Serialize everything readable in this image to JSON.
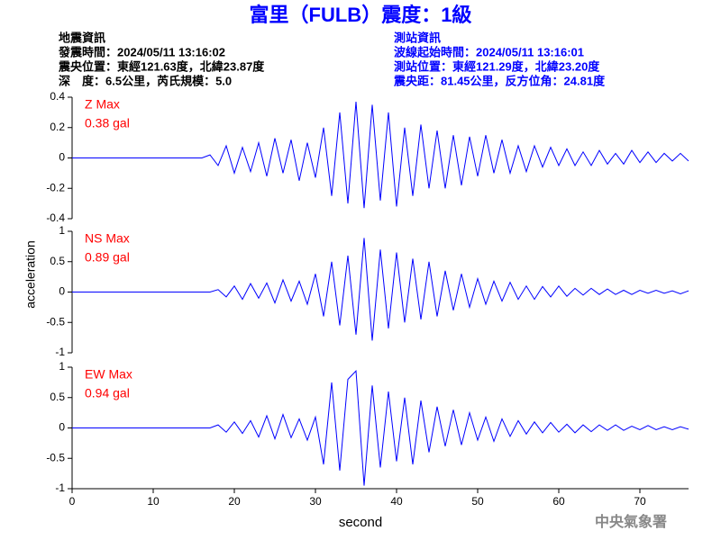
{
  "title": "富里（FULB）震度：1級",
  "earthquake_info": [
    "地震資訊",
    "發震時間：2024/05/11 13:16:02",
    "震央位置：東經121.63度，北緯23.87度",
    "深　度：6.5公里，芮氏規模：5.0"
  ],
  "station_info": [
    "測站資訊",
    "波線起始時間：2024/05/11 13:16:01",
    "測站位置：東經121.29度，北緯23.20度",
    "震央距：81.45公里，反方位角：24.81度"
  ],
  "y_label": "acceleration",
  "x_label": "second",
  "footer": "中央氣象署",
  "chart_data": [
    {
      "type": "line",
      "label": "Z Max",
      "max_label": "0.38 gal",
      "color": "#0000ff",
      "xlim": [
        0,
        76
      ],
      "ylim": [
        -0.4,
        0.4
      ],
      "yticks": [
        -0.4,
        -0.2,
        0,
        0.2,
        0.4
      ],
      "x": [
        0,
        1,
        2,
        3,
        4,
        5,
        6,
        7,
        8,
        9,
        10,
        11,
        12,
        13,
        14,
        15,
        16,
        17,
        18,
        19,
        20,
        21,
        22,
        23,
        24,
        25,
        26,
        27,
        28,
        29,
        30,
        31,
        32,
        33,
        34,
        35,
        36,
        37,
        38,
        39,
        40,
        41,
        42,
        43,
        44,
        45,
        46,
        47,
        48,
        49,
        50,
        51,
        52,
        53,
        54,
        55,
        56,
        57,
        58,
        59,
        60,
        61,
        62,
        63,
        64,
        65,
        66,
        67,
        68,
        69,
        70,
        71,
        72,
        73,
        74,
        75,
        76
      ],
      "values": [
        0,
        0,
        0,
        0,
        0,
        0,
        0,
        0,
        0,
        0,
        0,
        0,
        0,
        0,
        0,
        0,
        0,
        0.02,
        -0.05,
        0.08,
        -0.1,
        0.07,
        -0.09,
        0.1,
        -0.12,
        0.13,
        -0.1,
        0.12,
        -0.15,
        0.1,
        -0.13,
        0.2,
        -0.25,
        0.3,
        -0.3,
        0.37,
        -0.33,
        0.35,
        -0.28,
        0.3,
        -0.32,
        0.2,
        -0.25,
        0.22,
        -0.2,
        0.18,
        -0.2,
        0.15,
        -0.18,
        0.14,
        -0.12,
        0.15,
        -0.1,
        0.12,
        -0.1,
        0.08,
        -0.09,
        0.08,
        -0.06,
        0.07,
        -0.05,
        0.06,
        -0.05,
        0.04,
        -0.05,
        0.05,
        -0.04,
        0.03,
        -0.04,
        0.05,
        -0.03,
        0.04,
        -0.03,
        0.03,
        -0.02,
        0.03,
        -0.02
      ]
    },
    {
      "type": "line",
      "label": "NS Max",
      "max_label": "0.89 gal",
      "color": "#0000ff",
      "xlim": [
        0,
        76
      ],
      "ylim": [
        -1,
        1
      ],
      "yticks": [
        -1,
        -0.5,
        0,
        0.5,
        1
      ],
      "x": [
        0,
        1,
        2,
        3,
        4,
        5,
        6,
        7,
        8,
        9,
        10,
        11,
        12,
        13,
        14,
        15,
        16,
        17,
        18,
        19,
        20,
        21,
        22,
        23,
        24,
        25,
        26,
        27,
        28,
        29,
        30,
        31,
        32,
        33,
        34,
        35,
        36,
        37,
        38,
        39,
        40,
        41,
        42,
        43,
        44,
        45,
        46,
        47,
        48,
        49,
        50,
        51,
        52,
        53,
        54,
        55,
        56,
        57,
        58,
        59,
        60,
        61,
        62,
        63,
        64,
        65,
        66,
        67,
        68,
        69,
        70,
        71,
        72,
        73,
        74,
        75,
        76
      ],
      "values": [
        0,
        0,
        0,
        0,
        0,
        0,
        0,
        0,
        0,
        0,
        0,
        0,
        0,
        0,
        0,
        0,
        0,
        0,
        0.04,
        -0.08,
        0.1,
        -0.12,
        0.14,
        -0.1,
        0.15,
        -0.18,
        0.2,
        -0.15,
        0.18,
        -0.2,
        0.3,
        -0.4,
        0.5,
        -0.55,
        0.6,
        -0.7,
        0.89,
        -0.8,
        0.7,
        -0.6,
        0.65,
        -0.5,
        0.55,
        -0.45,
        0.5,
        -0.4,
        0.35,
        -0.3,
        0.3,
        -0.25,
        0.22,
        -0.2,
        0.18,
        -0.15,
        0.16,
        -0.12,
        0.1,
        -0.12,
        0.09,
        -0.08,
        0.1,
        -0.07,
        0.06,
        -0.05,
        0.06,
        -0.04,
        0.05,
        -0.04,
        0.03,
        -0.04,
        0.03,
        -0.02,
        0.03,
        -0.02,
        0.02,
        -0.03,
        0.02
      ]
    },
    {
      "type": "line",
      "label": "EW Max",
      "max_label": "0.94 gal",
      "color": "#0000ff",
      "xlim": [
        0,
        76
      ],
      "ylim": [
        -1,
        1
      ],
      "yticks": [
        -1,
        -0.5,
        0,
        0.5,
        1
      ],
      "xticks": [
        0,
        10,
        20,
        30,
        40,
        50,
        60,
        70
      ],
      "x": [
        0,
        1,
        2,
        3,
        4,
        5,
        6,
        7,
        8,
        9,
        10,
        11,
        12,
        13,
        14,
        15,
        16,
        17,
        18,
        19,
        20,
        21,
        22,
        23,
        24,
        25,
        26,
        27,
        28,
        29,
        30,
        31,
        32,
        33,
        34,
        35,
        36,
        37,
        38,
        39,
        40,
        41,
        42,
        43,
        44,
        45,
        46,
        47,
        48,
        49,
        50,
        51,
        52,
        53,
        54,
        55,
        56,
        57,
        58,
        59,
        60,
        61,
        62,
        63,
        64,
        65,
        66,
        67,
        68,
        69,
        70,
        71,
        72,
        73,
        74,
        75,
        76
      ],
      "values": [
        0,
        0,
        0,
        0,
        0,
        0,
        0,
        0,
        0,
        0,
        0,
        0,
        0,
        0,
        0,
        0,
        0,
        0,
        0.05,
        -0.07,
        0.1,
        -0.09,
        0.12,
        -0.15,
        0.2,
        -0.18,
        0.22,
        -0.16,
        0.15,
        -0.2,
        0.18,
        -0.6,
        0.75,
        -0.7,
        0.8,
        0.94,
        -0.95,
        0.7,
        -0.65,
        0.6,
        -0.55,
        0.5,
        -0.6,
        0.45,
        -0.4,
        0.35,
        -0.3,
        0.3,
        -0.28,
        0.25,
        -0.2,
        0.18,
        -0.22,
        0.15,
        -0.14,
        0.12,
        -0.1,
        0.1,
        -0.08,
        0.09,
        -0.07,
        0.06,
        -0.08,
        0.05,
        -0.06,
        0.05,
        -0.04,
        0.05,
        -0.04,
        0.03,
        -0.03,
        0.04,
        -0.03,
        0.02,
        -0.03,
        0.02,
        -0.02
      ]
    }
  ]
}
